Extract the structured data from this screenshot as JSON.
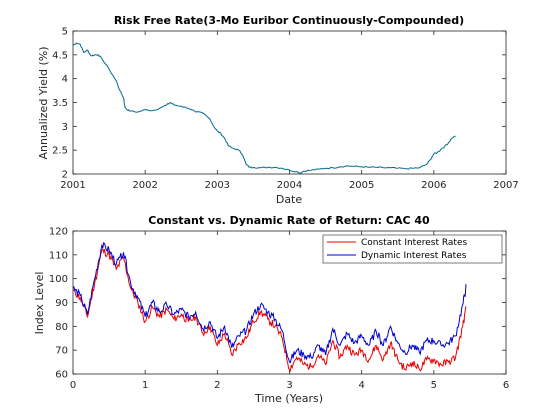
{
  "chart_data": [
    {
      "type": "line",
      "title": "Risk Free Rate(3-Mo Euribor Continuously-Compounded)",
      "xlabel": "Date",
      "ylabel": "Annualized Yield (%)",
      "xlim": [
        2001,
        2007
      ],
      "ylim": [
        2,
        5
      ],
      "xticks": [
        "2001",
        "2002",
        "2003",
        "2004",
        "2005",
        "2006",
        "2007"
      ],
      "yticks": [
        "2",
        "2.5",
        "3",
        "3.5",
        "4",
        "4.5",
        "5"
      ],
      "color": "#006b8f",
      "series": [
        {
          "x": [
            2001.0,
            2001.05,
            2001.1,
            2001.15,
            2001.2,
            2001.25,
            2001.3,
            2001.35,
            2001.4,
            2001.5,
            2001.6,
            2001.65,
            2001.7,
            2001.72,
            2001.75,
            2001.8,
            2001.9,
            2002.0,
            2002.1,
            2002.2,
            2002.3,
            2002.35,
            2002.4,
            2002.5,
            2002.6,
            2002.7,
            2002.8,
            2002.9,
            2002.95,
            2003.0,
            2003.05,
            2003.1,
            2003.15,
            2003.2,
            2003.3,
            2003.35,
            2003.4,
            2003.45,
            2003.5,
            2003.6,
            2003.7,
            2003.8,
            2003.9,
            2004.0,
            2004.1,
            2004.15,
            2004.2,
            2004.3,
            2004.4,
            2004.5,
            2004.6,
            2004.7,
            2004.8,
            2004.9,
            2005.0,
            2005.1,
            2005.2,
            2005.3,
            2005.4,
            2005.5,
            2005.6,
            2005.7,
            2005.8,
            2005.9,
            2005.95,
            2006.0,
            2006.05,
            2006.1,
            2006.15,
            2006.2,
            2006.25,
            2006.3
          ],
          "y": [
            4.7,
            4.75,
            4.72,
            4.55,
            4.6,
            4.48,
            4.5,
            4.5,
            4.42,
            4.2,
            3.95,
            3.75,
            3.6,
            3.4,
            3.35,
            3.32,
            3.3,
            3.35,
            3.33,
            3.38,
            3.45,
            3.5,
            3.45,
            3.42,
            3.38,
            3.3,
            3.28,
            3.15,
            3.0,
            2.9,
            2.85,
            2.75,
            2.6,
            2.55,
            2.5,
            2.4,
            2.2,
            2.14,
            2.14,
            2.13,
            2.14,
            2.14,
            2.12,
            2.08,
            2.05,
            2.02,
            2.06,
            2.08,
            2.1,
            2.12,
            2.13,
            2.15,
            2.17,
            2.16,
            2.15,
            2.14,
            2.14,
            2.13,
            2.13,
            2.12,
            2.11,
            2.12,
            2.13,
            2.2,
            2.3,
            2.42,
            2.45,
            2.52,
            2.58,
            2.65,
            2.75,
            2.8
          ]
        }
      ]
    },
    {
      "type": "line",
      "title": "Constant vs. Dynamic Rate of Return: CAC 40",
      "xlabel": "Time (Years)",
      "ylabel": "Index Level",
      "xlim": [
        0,
        6
      ],
      "ylim": [
        60,
        120
      ],
      "xticks": [
        "0",
        "1",
        "2",
        "3",
        "4",
        "5",
        "6"
      ],
      "yticks": [
        "60",
        "70",
        "80",
        "90",
        "100",
        "110",
        "120"
      ],
      "legend_position": "top-right",
      "x": [
        0,
        0.1,
        0.2,
        0.3,
        0.4,
        0.5,
        0.6,
        0.7,
        0.8,
        0.9,
        1.0,
        1.1,
        1.2,
        1.3,
        1.4,
        1.5,
        1.6,
        1.7,
        1.8,
        1.9,
        2.0,
        2.1,
        2.2,
        2.3,
        2.4,
        2.5,
        2.6,
        2.7,
        2.8,
        2.9,
        3.0,
        3.1,
        3.2,
        3.3,
        3.4,
        3.5,
        3.6,
        3.7,
        3.8,
        3.9,
        4.0,
        4.1,
        4.2,
        4.3,
        4.4,
        4.5,
        4.6,
        4.7,
        4.8,
        4.9,
        5.0,
        5.1,
        5.2,
        5.3,
        5.4,
        5.45
      ],
      "series": [
        {
          "name": "Constant Interest Rates",
          "color": "#e60000",
          "values": [
            95,
            92,
            84,
            98,
            112,
            110,
            104,
            109,
            96,
            90,
            82,
            88,
            84,
            87,
            83,
            85,
            82,
            84,
            77,
            80,
            72,
            77,
            68,
            73,
            75,
            82,
            86,
            83,
            80,
            75,
            62,
            67,
            64,
            63,
            68,
            64,
            74,
            67,
            72,
            68,
            70,
            66,
            72,
            66,
            73,
            66,
            62,
            65,
            62,
            66,
            66,
            64,
            65,
            67,
            80,
            88
          ]
        },
        {
          "name": "Dynamic Interest Rates",
          "color": "#0000cc",
          "values": [
            96,
            93,
            85,
            100,
            114,
            112,
            106,
            111,
            98,
            92,
            84,
            90,
            86,
            89,
            85,
            87,
            84,
            86,
            79,
            82,
            75,
            80,
            71,
            76,
            78,
            85,
            89,
            86,
            83,
            78,
            65,
            70,
            68,
            67,
            72,
            68,
            79,
            72,
            77,
            73,
            76,
            72,
            78,
            72,
            80,
            73,
            69,
            72,
            69,
            74,
            74,
            72,
            73,
            76,
            89,
            97
          ]
        }
      ]
    }
  ]
}
